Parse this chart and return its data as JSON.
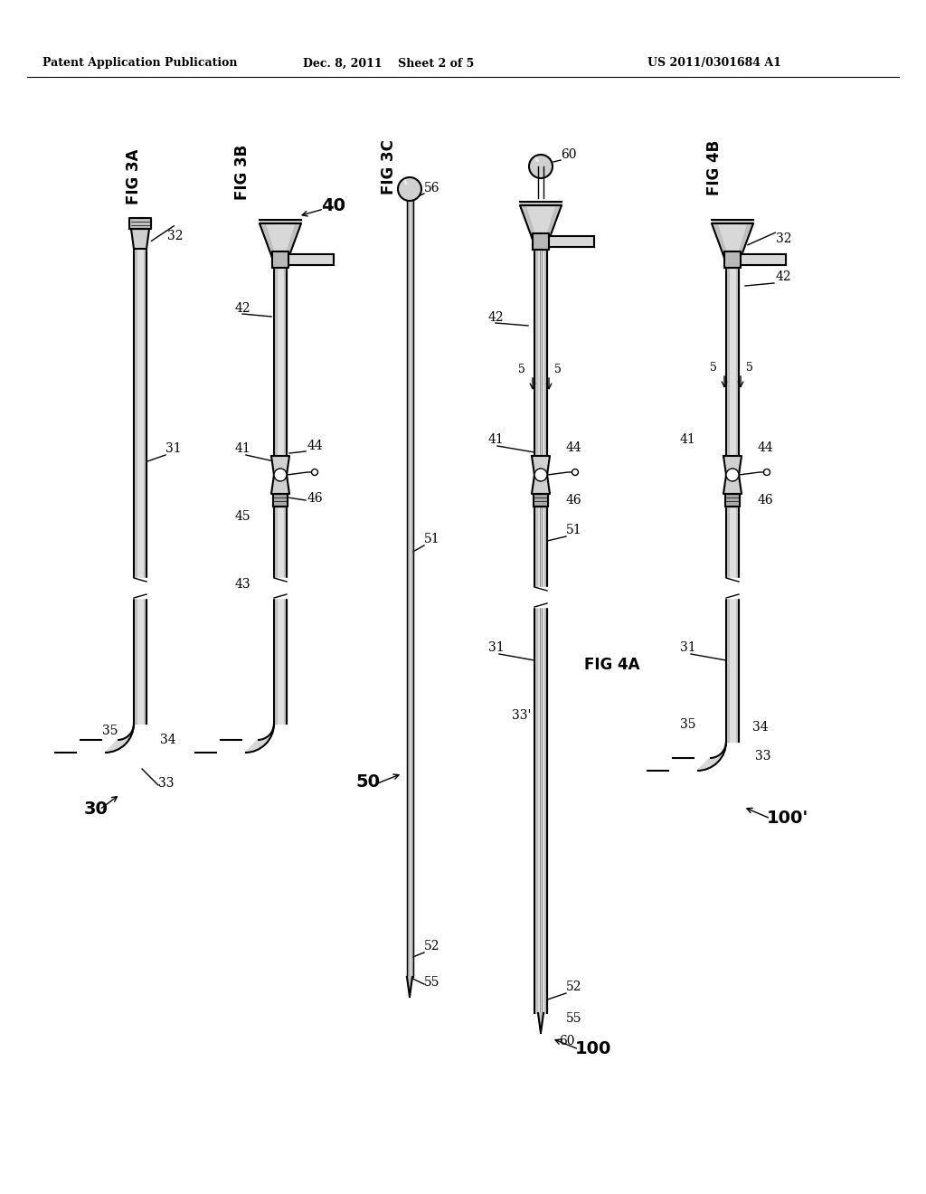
{
  "background_color": "#ffffff",
  "header_left": "Patent Application Publication",
  "header_center": "Dec. 8, 2011    Sheet 2 of 5",
  "header_right": "US 2011/0301684 A1",
  "line_color": "#000000"
}
